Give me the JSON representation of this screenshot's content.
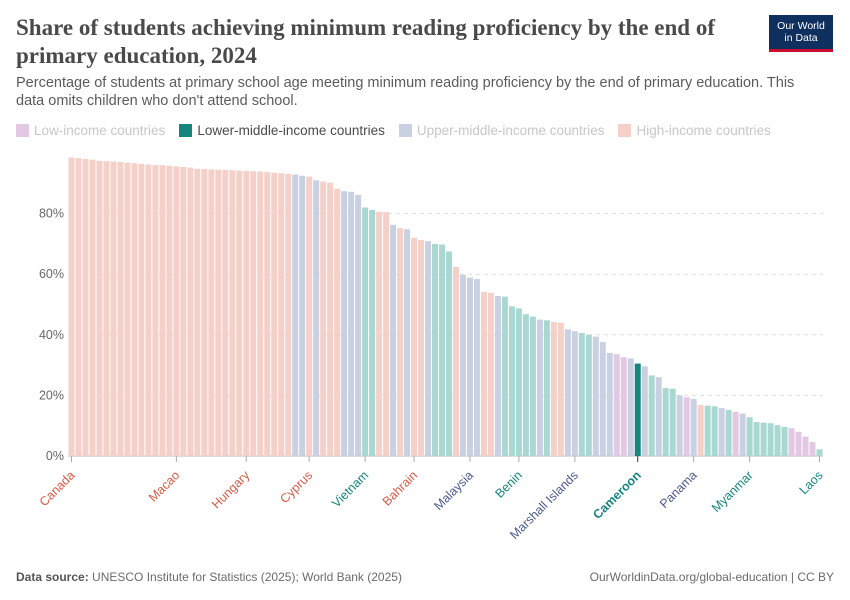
{
  "title": "Share of students achieving minimum reading proficiency by the end of primary education, 2024",
  "subtitle": "Percentage of students at primary school age meeting minimum reading proficiency by the end of primary education. This data omits children who don't attend school.",
  "logo": {
    "line1": "Our World",
    "line2": "in Data"
  },
  "legend": [
    {
      "label": "Low-income countries",
      "color": "#e3c8e4",
      "active": false
    },
    {
      "label": "Lower-middle-income countries",
      "color": "#16857e",
      "active": true
    },
    {
      "label": "Upper-middle-income countries",
      "color": "#c8d0e2",
      "active": false
    },
    {
      "label": "High-income countries",
      "color": "#f5d0c8",
      "active": false
    }
  ],
  "footer": {
    "source_label": "Data source:",
    "source_text": "UNESCO Institute for Statistics (2025); World Bank (2025)",
    "url": "OurWorldinData.org/global-education | CC BY"
  },
  "chart_data": {
    "type": "bar",
    "title": "Share of students achieving minimum reading proficiency by the end of primary education, 2024",
    "ylim": [
      0,
      100
    ],
    "yticks": [
      0,
      20,
      40,
      60,
      80
    ],
    "ytick_labels": [
      "0%",
      "20%",
      "40%",
      "60%",
      "80%"
    ],
    "highlighted": "Cameroon",
    "group_colors": {
      "L": "#e3c8e4",
      "LM": "#a9d8d3",
      "UM": "#c8d0e2",
      "H": "#f5d0c8",
      "highlight": "#16857e"
    },
    "label_colors": {
      "L": "#a35bb3",
      "LM": "#16857e",
      "UM": "#4c5a8e",
      "H": "#d35c46",
      "highlight": "#16857e"
    },
    "series": [
      {
        "name": "Canada",
        "v": 98.5,
        "g": "H",
        "labeled": true
      },
      {
        "name": "",
        "v": 98.3,
        "g": "H"
      },
      {
        "name": "",
        "v": 98.0,
        "g": "H"
      },
      {
        "name": "",
        "v": 97.8,
        "g": "H"
      },
      {
        "name": "",
        "v": 97.4,
        "g": "H"
      },
      {
        "name": "",
        "v": 97.3,
        "g": "H"
      },
      {
        "name": "",
        "v": 97.2,
        "g": "H"
      },
      {
        "name": "",
        "v": 97.0,
        "g": "H"
      },
      {
        "name": "",
        "v": 96.8,
        "g": "H"
      },
      {
        "name": "",
        "v": 96.6,
        "g": "H"
      },
      {
        "name": "",
        "v": 96.4,
        "g": "H"
      },
      {
        "name": "",
        "v": 96.2,
        "g": "H"
      },
      {
        "name": "",
        "v": 96.0,
        "g": "H"
      },
      {
        "name": "",
        "v": 96.0,
        "g": "H"
      },
      {
        "name": "",
        "v": 95.8,
        "g": "H"
      },
      {
        "name": "Macao",
        "v": 95.6,
        "g": "H",
        "labeled": true
      },
      {
        "name": "",
        "v": 95.4,
        "g": "H"
      },
      {
        "name": "",
        "v": 95.2,
        "g": "H"
      },
      {
        "name": "",
        "v": 94.8,
        "g": "H"
      },
      {
        "name": "",
        "v": 94.7,
        "g": "H"
      },
      {
        "name": "",
        "v": 94.6,
        "g": "H"
      },
      {
        "name": "",
        "v": 94.5,
        "g": "H"
      },
      {
        "name": "",
        "v": 94.4,
        "g": "H"
      },
      {
        "name": "",
        "v": 94.3,
        "g": "H"
      },
      {
        "name": "",
        "v": 94.2,
        "g": "H"
      },
      {
        "name": "Hungary",
        "v": 94.1,
        "g": "H",
        "labeled": true
      },
      {
        "name": "",
        "v": 94.0,
        "g": "H"
      },
      {
        "name": "",
        "v": 93.9,
        "g": "H"
      },
      {
        "name": "",
        "v": 93.7,
        "g": "H"
      },
      {
        "name": "",
        "v": 93.5,
        "g": "H"
      },
      {
        "name": "",
        "v": 93.3,
        "g": "H"
      },
      {
        "name": "",
        "v": 93.1,
        "g": "H"
      },
      {
        "name": "",
        "v": 92.9,
        "g": "UM"
      },
      {
        "name": "",
        "v": 92.5,
        "g": "UM"
      },
      {
        "name": "Cyprus",
        "v": 92.2,
        "g": "H",
        "labeled": true
      },
      {
        "name": "",
        "v": 91.0,
        "g": "UM"
      },
      {
        "name": "",
        "v": 90.6,
        "g": "H"
      },
      {
        "name": "",
        "v": 90.2,
        "g": "H"
      },
      {
        "name": "",
        "v": 88.2,
        "g": "H"
      },
      {
        "name": "",
        "v": 87.4,
        "g": "UM"
      },
      {
        "name": "",
        "v": 87.2,
        "g": "UM"
      },
      {
        "name": "",
        "v": 86.2,
        "g": "UM"
      },
      {
        "name": "Vietnam",
        "v": 82.0,
        "g": "LM",
        "labeled": true
      },
      {
        "name": "",
        "v": 81.2,
        "g": "LM"
      },
      {
        "name": "",
        "v": 80.6,
        "g": "H"
      },
      {
        "name": "",
        "v": 80.5,
        "g": "H"
      },
      {
        "name": "",
        "v": 76.3,
        "g": "UM"
      },
      {
        "name": "",
        "v": 75.2,
        "g": "H"
      },
      {
        "name": "",
        "v": 74.8,
        "g": "UM"
      },
      {
        "name": "Bahrain",
        "v": 72.0,
        "g": "H",
        "labeled": true
      },
      {
        "name": "",
        "v": 71.3,
        "g": "H"
      },
      {
        "name": "",
        "v": 70.9,
        "g": "UM"
      },
      {
        "name": "",
        "v": 70.0,
        "g": "LM"
      },
      {
        "name": "",
        "v": 69.8,
        "g": "LM"
      },
      {
        "name": "",
        "v": 67.5,
        "g": "LM"
      },
      {
        "name": "",
        "v": 62.4,
        "g": "H"
      },
      {
        "name": "",
        "v": 59.8,
        "g": "UM"
      },
      {
        "name": "Malaysia",
        "v": 58.9,
        "g": "UM",
        "labeled": true
      },
      {
        "name": "",
        "v": 58.4,
        "g": "UM"
      },
      {
        "name": "",
        "v": 54.2,
        "g": "H"
      },
      {
        "name": "",
        "v": 53.8,
        "g": "H"
      },
      {
        "name": "",
        "v": 52.8,
        "g": "UM"
      },
      {
        "name": "",
        "v": 52.6,
        "g": "LM"
      },
      {
        "name": "",
        "v": 49.4,
        "g": "LM"
      },
      {
        "name": "Benin",
        "v": 48.7,
        "g": "LM",
        "labeled": true
      },
      {
        "name": "",
        "v": 46.8,
        "g": "LM"
      },
      {
        "name": "",
        "v": 46.0,
        "g": "LM"
      },
      {
        "name": "",
        "v": 45.0,
        "g": "UM"
      },
      {
        "name": "",
        "v": 44.8,
        "g": "LM"
      },
      {
        "name": "",
        "v": 44.2,
        "g": "H"
      },
      {
        "name": "",
        "v": 44.0,
        "g": "H"
      },
      {
        "name": "",
        "v": 41.8,
        "g": "UM"
      },
      {
        "name": "Marshall Islands",
        "v": 41.2,
        "g": "UM",
        "labeled": true
      },
      {
        "name": "",
        "v": 40.6,
        "g": "LM"
      },
      {
        "name": "",
        "v": 40.0,
        "g": "LM"
      },
      {
        "name": "",
        "v": 39.4,
        "g": "UM"
      },
      {
        "name": "",
        "v": 37.6,
        "g": "UM"
      },
      {
        "name": "",
        "v": 34.0,
        "g": "UM"
      },
      {
        "name": "",
        "v": 33.6,
        "g": "L"
      },
      {
        "name": "",
        "v": 32.6,
        "g": "L"
      },
      {
        "name": "",
        "v": 32.2,
        "g": "UM"
      },
      {
        "name": "Cameroon",
        "v": 30.5,
        "g": "LM",
        "labeled": true,
        "highlight": true
      },
      {
        "name": "",
        "v": 29.6,
        "g": "UM"
      },
      {
        "name": "",
        "v": 26.6,
        "g": "LM"
      },
      {
        "name": "",
        "v": 26.0,
        "g": "UM"
      },
      {
        "name": "",
        "v": 22.4,
        "g": "LM"
      },
      {
        "name": "",
        "v": 22.2,
        "g": "LM"
      },
      {
        "name": "",
        "v": 20.0,
        "g": "UM"
      },
      {
        "name": "",
        "v": 19.4,
        "g": "L"
      },
      {
        "name": "Panama",
        "v": 18.8,
        "g": "UM",
        "labeled": true
      },
      {
        "name": "",
        "v": 16.8,
        "g": "H"
      },
      {
        "name": "",
        "v": 16.6,
        "g": "LM"
      },
      {
        "name": "",
        "v": 16.4,
        "g": "LM"
      },
      {
        "name": "",
        "v": 15.8,
        "g": "UM"
      },
      {
        "name": "",
        "v": 15.2,
        "g": "LM"
      },
      {
        "name": "",
        "v": 14.6,
        "g": "L"
      },
      {
        "name": "",
        "v": 14.0,
        "g": "UM"
      },
      {
        "name": "Myanmar",
        "v": 12.8,
        "g": "LM",
        "labeled": true
      },
      {
        "name": "",
        "v": 11.2,
        "g": "LM"
      },
      {
        "name": "",
        "v": 11.0,
        "g": "LM"
      },
      {
        "name": "",
        "v": 10.8,
        "g": "LM"
      },
      {
        "name": "",
        "v": 10.2,
        "g": "LM"
      },
      {
        "name": "",
        "v": 9.6,
        "g": "LM"
      },
      {
        "name": "",
        "v": 9.2,
        "g": "L"
      },
      {
        "name": "",
        "v": 8.0,
        "g": "L"
      },
      {
        "name": "",
        "v": 6.4,
        "g": "L"
      },
      {
        "name": "",
        "v": 4.6,
        "g": "L"
      },
      {
        "name": "Laos",
        "v": 2.2,
        "g": "LM",
        "labeled": true
      }
    ]
  }
}
